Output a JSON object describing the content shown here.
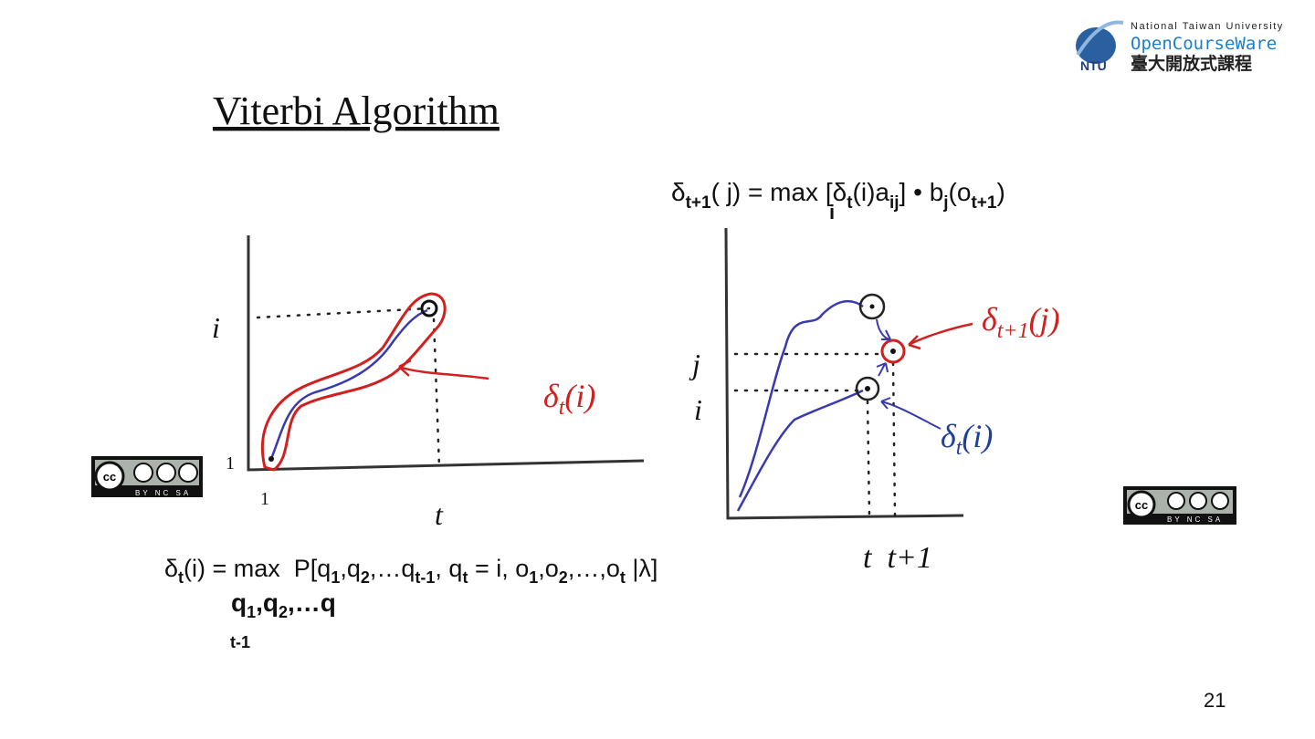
{
  "header": {
    "university": "National Taiwan University",
    "brand": "OpenCourseWare",
    "chinese": "臺大開放式課程",
    "ntu": "NTU"
  },
  "title": "Viterbi Algorithm",
  "formula_top": [
    "δ",
    "t+1",
    "( j) = max [δ",
    "t",
    "(i)a",
    "ij",
    "] • b",
    "j",
    "(o",
    "t+1",
    ")"
  ],
  "formula_top_under": "i",
  "left_diagram": {
    "y_label": "i",
    "y_one": "1",
    "x_one": "1",
    "x_label": "t",
    "delta": [
      "δ",
      "t",
      "(i)"
    ]
  },
  "right_diagram": {
    "j_label": "j",
    "i_label": "i",
    "delta_next": [
      "δ",
      "t+1",
      "(j)"
    ],
    "delta": [
      "δ",
      "t",
      "(i)"
    ],
    "x_labels": "t  t+1"
  },
  "formula_bottom": [
    "δ",
    "t",
    "(i) = max  P[q",
    "1",
    ",q",
    "2",
    ",…q",
    "t-1",
    ", q",
    "t",
    " = i, o",
    "1",
    ",o",
    "2",
    ",…,o",
    "t",
    " |λ]"
  ],
  "formula_bottom_under": [
    "q",
    "1",
    ",q",
    "2",
    ",…q"
  ],
  "formula_bottom_under2": "t-1",
  "license": "BY NC SA",
  "page_number": "21"
}
